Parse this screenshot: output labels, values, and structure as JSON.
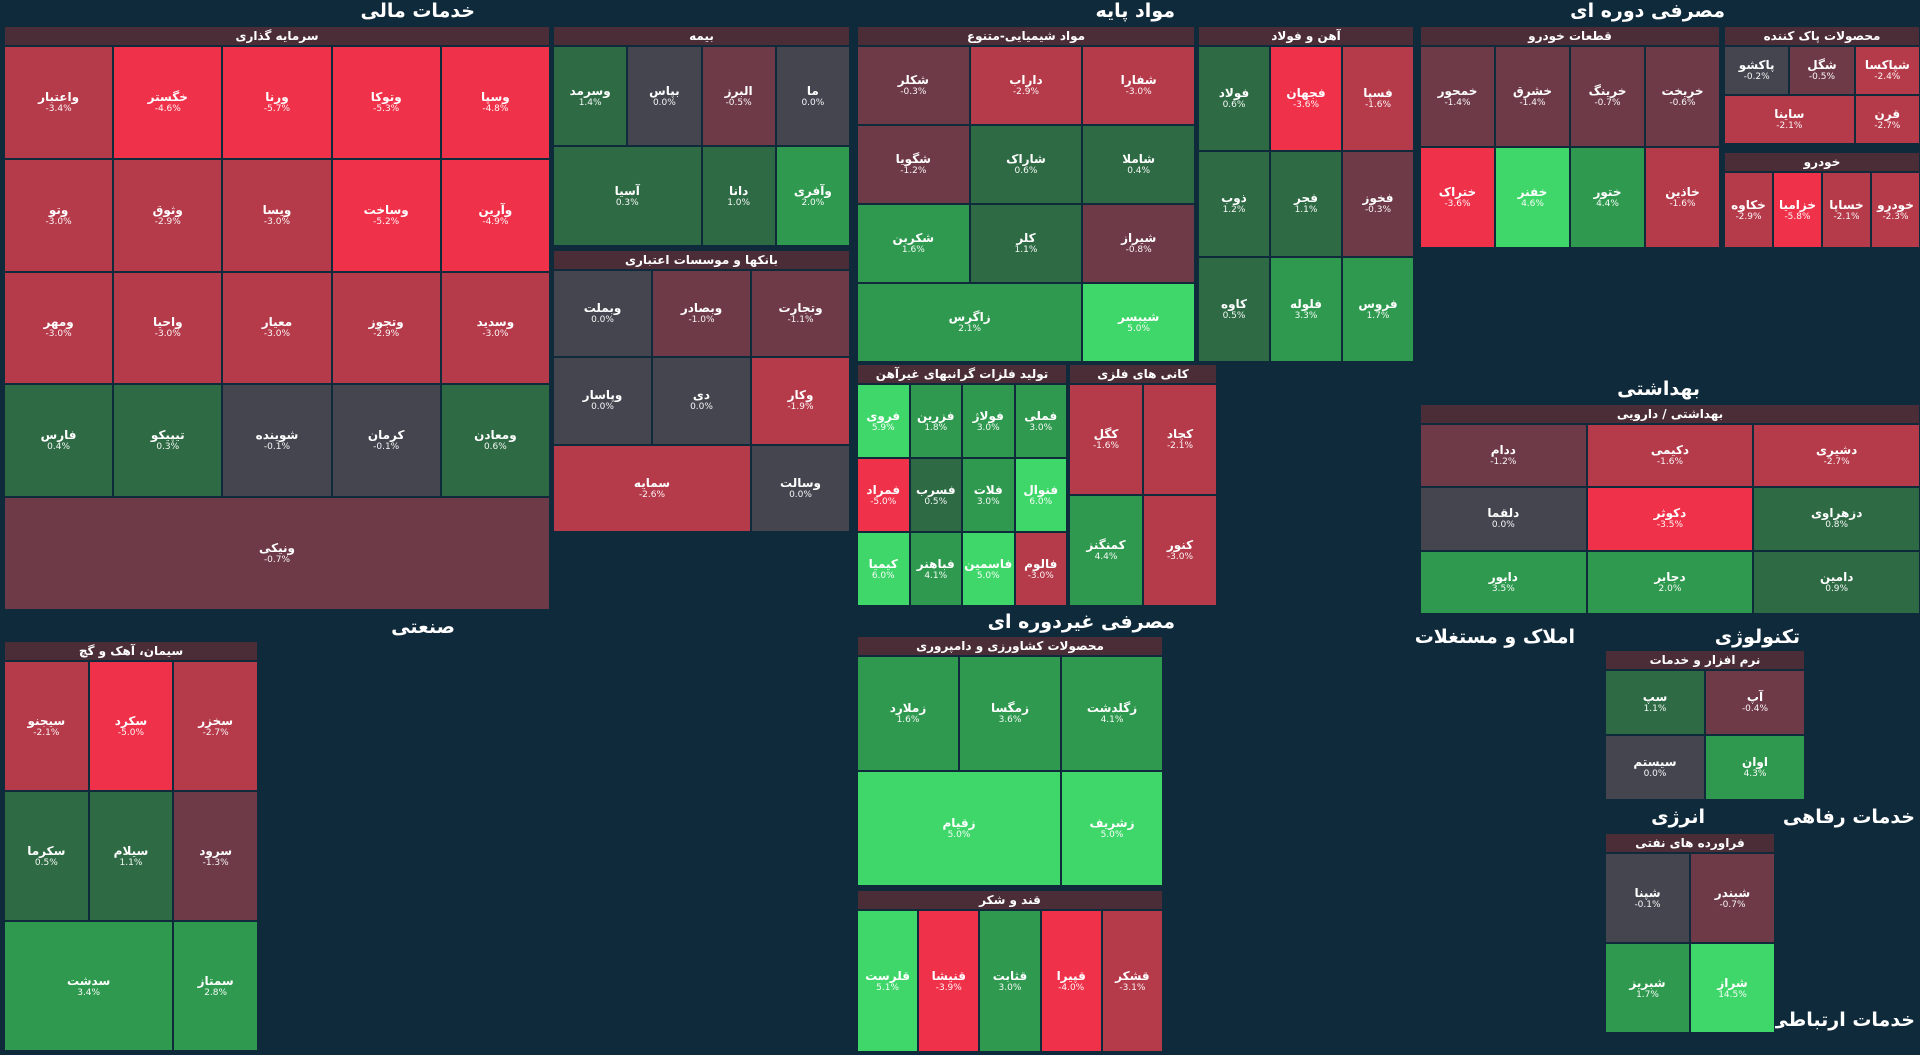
{
  "chart_data": {
    "type": "treemap",
    "colors": {
      "background": "#0f2a3b",
      "strong_negative": "#f0314a",
      "negative": "#b53a4a",
      "mild_negative": "#6e3a48",
      "neutral": "#44454f",
      "mild_positive": "#2e6b44",
      "positive": "#2f9a4f",
      "strong_positive": "#3fd76a"
    },
    "sector_titles": [
      "خدمات مالی",
      "مواد پایه",
      "مصرفی دوره ای",
      "صنعتی",
      "مصرفی غیردوره ای",
      "املاک و مستغلات",
      "تکنولوژی",
      "بهداشتی",
      "انرژی",
      "خدمات رفاهی",
      "خدمات ارتباطی"
    ],
    "groups": [
      {
        "name": "سرمایه گذاری",
        "stocks": [
          {
            "name": "وسپا",
            "change": "-4.8%"
          },
          {
            "name": "وتوکا",
            "change": "-5.3%"
          },
          {
            "name": "ورنا",
            "change": "-5.7%"
          },
          {
            "name": "خگستر",
            "change": "-4.6%"
          },
          {
            "name": "واعتبار",
            "change": "-3.4%"
          },
          {
            "name": "وآرین",
            "change": "-4.9%"
          },
          {
            "name": "وساخت",
            "change": "-5.2%"
          },
          {
            "name": "ویسا",
            "change": "-3.0%"
          },
          {
            "name": "وثوق",
            "change": "-2.9%"
          },
          {
            "name": "وتو",
            "change": "-3.0%"
          },
          {
            "name": "وسدید",
            "change": "-3.0%"
          },
          {
            "name": "وتجوز",
            "change": "-2.9%"
          },
          {
            "name": "معیار",
            "change": "-3.0%"
          },
          {
            "name": "واحیا",
            "change": "-3.0%"
          },
          {
            "name": "ومهر",
            "change": "-3.0%"
          },
          {
            "name": "ومعادن",
            "change": "0.6%"
          },
          {
            "name": "کرمان",
            "change": "-0.1%"
          },
          {
            "name": "شوینده",
            "change": "-0.1%"
          },
          {
            "name": "تیپیکو",
            "change": "0.3%"
          },
          {
            "name": "فارس",
            "change": "0.4%"
          },
          {
            "name": "ونیکی",
            "change": "-0.7%"
          }
        ]
      },
      {
        "name": "بیمه",
        "stocks": [
          {
            "name": "ما",
            "change": "0.0%"
          },
          {
            "name": "البرز",
            "change": "-0.5%"
          },
          {
            "name": "بپاس",
            "change": "0.0%"
          },
          {
            "name": "وسرمد",
            "change": "1.4%"
          },
          {
            "name": "وآفری",
            "change": "2.0%"
          },
          {
            "name": "دانا",
            "change": "1.0%"
          },
          {
            "name": "آسیا",
            "change": "0.3%"
          }
        ]
      },
      {
        "name": "مواد شیمیایی-متنوع",
        "stocks": [
          {
            "name": "شفارا",
            "change": "-3.0%"
          },
          {
            "name": "داراب",
            "change": "-2.9%"
          },
          {
            "name": "شکلر",
            "change": "-0.3%"
          },
          {
            "name": "شاملا",
            "change": "0.4%"
          },
          {
            "name": "شاراک",
            "change": "0.6%"
          },
          {
            "name": "شگویا",
            "change": "-1.2%"
          },
          {
            "name": "شیراز",
            "change": "-0.8%"
          },
          {
            "name": "کلر",
            "change": "1.1%"
          },
          {
            "name": "شکربن",
            "change": "1.6%"
          },
          {
            "name": "شیبسر",
            "change": "5.0%"
          },
          {
            "name": "زاگرس",
            "change": "2.1%"
          }
        ]
      },
      {
        "name": "آهن و فولاد",
        "stocks": [
          {
            "name": "فسپا",
            "change": "-1.6%"
          },
          {
            "name": "فجهان",
            "change": "-3.6%"
          },
          {
            "name": "فولاد",
            "change": "0.6%"
          },
          {
            "name": "فخوز",
            "change": "-0.3%"
          },
          {
            "name": "فجر",
            "change": "1.1%"
          },
          {
            "name": "ذوب",
            "change": "1.2%"
          },
          {
            "name": "فروس",
            "change": "1.7%"
          },
          {
            "name": "فلوله",
            "change": "3.3%"
          },
          {
            "name": "کاوه",
            "change": "0.5%"
          }
        ]
      },
      {
        "name": "قطعات خودرو",
        "stocks": [
          {
            "name": "خریخت",
            "change": "-0.6%"
          },
          {
            "name": "خرینگ",
            "change": "-0.7%"
          },
          {
            "name": "خشرق",
            "change": "-1.4%"
          },
          {
            "name": "خمحور",
            "change": "-1.4%"
          },
          {
            "name": "خاذین",
            "change": "-1.6%"
          },
          {
            "name": "ختور",
            "change": "4.4%"
          },
          {
            "name": "خفنر",
            "change": "4.6%"
          },
          {
            "name": "ختراک",
            "change": "-3.6%"
          }
        ]
      },
      {
        "name": "محصولات پاک کننده",
        "stocks": [
          {
            "name": "شپاکسا",
            "change": "-2.4%"
          },
          {
            "name": "شگل",
            "change": "-0.5%"
          },
          {
            "name": "پاکشو",
            "change": "-0.2%"
          },
          {
            "name": "قرن",
            "change": "-2.7%"
          },
          {
            "name": "ساینا",
            "change": "-2.1%"
          }
        ]
      },
      {
        "name": "خودرو",
        "stocks": [
          {
            "name": "خودرو",
            "change": "-2.3%"
          },
          {
            "name": "خساپا",
            "change": "-2.1%"
          },
          {
            "name": "خزامیا",
            "change": "-5.8%"
          },
          {
            "name": "خکاوه",
            "change": "-2.9%"
          }
        ]
      },
      {
        "name": "بانکها و موسسات اعتباری",
        "stocks": [
          {
            "name": "وتجارت",
            "change": "-1.1%"
          },
          {
            "name": "وبصادر",
            "change": "-1.0%"
          },
          {
            "name": "وبملت",
            "change": "0.0%"
          },
          {
            "name": "وکار",
            "change": "-1.9%"
          },
          {
            "name": "دی",
            "change": "0.0%"
          },
          {
            "name": "وپاسار",
            "change": "0.0%"
          },
          {
            "name": "وسالت",
            "change": "0.0%"
          },
          {
            "name": "سمایه",
            "change": "-2.6%"
          }
        ]
      },
      {
        "name": "تولید فلزات گرانبهای غیرآهن",
        "stocks": [
          {
            "name": "فملی",
            "change": "3.0%"
          },
          {
            "name": "فولاژ",
            "change": "3.0%"
          },
          {
            "name": "فزرین",
            "change": "1.8%"
          },
          {
            "name": "فروی",
            "change": "5.9%"
          },
          {
            "name": "فنوال",
            "change": "6.0%"
          },
          {
            "name": "فلات",
            "change": "3.0%"
          },
          {
            "name": "فسرب",
            "change": "0.5%"
          },
          {
            "name": "فمراد",
            "change": "-5.0%"
          },
          {
            "name": "فالوم",
            "change": "-3.0%"
          },
          {
            "name": "فاسمین",
            "change": "5.0%"
          },
          {
            "name": "فباهنر",
            "change": "4.1%"
          },
          {
            "name": "کیمیا",
            "change": "6.0%"
          }
        ]
      },
      {
        "name": "کانی های فلزی",
        "stocks": [
          {
            "name": "کچاد",
            "change": "-2.1%"
          },
          {
            "name": "کگل",
            "change": "-1.6%"
          },
          {
            "name": "کنور",
            "change": "-3.0%"
          },
          {
            "name": "کمنگنز",
            "change": "4.4%"
          }
        ]
      },
      {
        "name": "بهداشتی / دارویی",
        "stocks": [
          {
            "name": "دشیری",
            "change": "-2.7%"
          },
          {
            "name": "دکیمی",
            "change": "-1.6%"
          },
          {
            "name": "ددام",
            "change": "-1.2%"
          },
          {
            "name": "دزهراوی",
            "change": "0.8%"
          },
          {
            "name": "دکوثر",
            "change": "-3.5%"
          },
          {
            "name": "دلقما",
            "change": "0.0%"
          },
          {
            "name": "دامین",
            "change": "0.9%"
          },
          {
            "name": "دجابر",
            "change": "2.0%"
          },
          {
            "name": "دابور",
            "change": "3.5%"
          }
        ]
      },
      {
        "name": "سیمان، آهک و گچ",
        "stocks": [
          {
            "name": "سخزر",
            "change": "-2.7%"
          },
          {
            "name": "سکرد",
            "change": "-5.0%"
          },
          {
            "name": "سیجنو",
            "change": "-2.1%"
          },
          {
            "name": "سرود",
            "change": "-1.3%"
          },
          {
            "name": "سیلام",
            "change": "1.1%"
          },
          {
            "name": "سکرما",
            "change": "0.5%"
          },
          {
            "name": "سمتاز",
            "change": "2.8%"
          },
          {
            "name": "سدشت",
            "change": "3.4%"
          }
        ]
      },
      {
        "name": "محصولات کشاورزی و دامپروری",
        "stocks": [
          {
            "name": "زگلدشت",
            "change": "4.1%"
          },
          {
            "name": "زمگسا",
            "change": "3.6%"
          },
          {
            "name": "زملارد",
            "change": "1.6%"
          },
          {
            "name": "زشریف",
            "change": "5.0%"
          },
          {
            "name": "زقیام",
            "change": "5.0%"
          }
        ]
      },
      {
        "name": "قند و شکر",
        "stocks": [
          {
            "name": "قشکر",
            "change": "-3.1%"
          },
          {
            "name": "قپیرا",
            "change": "-4.0%"
          },
          {
            "name": "قثابت",
            "change": "3.0%"
          },
          {
            "name": "قنیشا",
            "change": "-3.9%"
          },
          {
            "name": "قلرست",
            "change": "5.1%"
          }
        ]
      },
      {
        "name": "نرم افزار و خدمات",
        "stocks": [
          {
            "name": "آپ",
            "change": "-0.4%"
          },
          {
            "name": "سپ",
            "change": "1.1%"
          },
          {
            "name": "اوان",
            "change": "4.3%"
          },
          {
            "name": "سیستم",
            "change": "0.0%"
          }
        ]
      },
      {
        "name": "فراورده های نفتی",
        "stocks": [
          {
            "name": "شبندر",
            "change": "-0.7%"
          },
          {
            "name": "شپنا",
            "change": "-0.1%"
          },
          {
            "name": "شراز",
            "change": "14.5%"
          },
          {
            "name": "شبریز",
            "change": "1.7%"
          }
        ]
      }
    ]
  }
}
